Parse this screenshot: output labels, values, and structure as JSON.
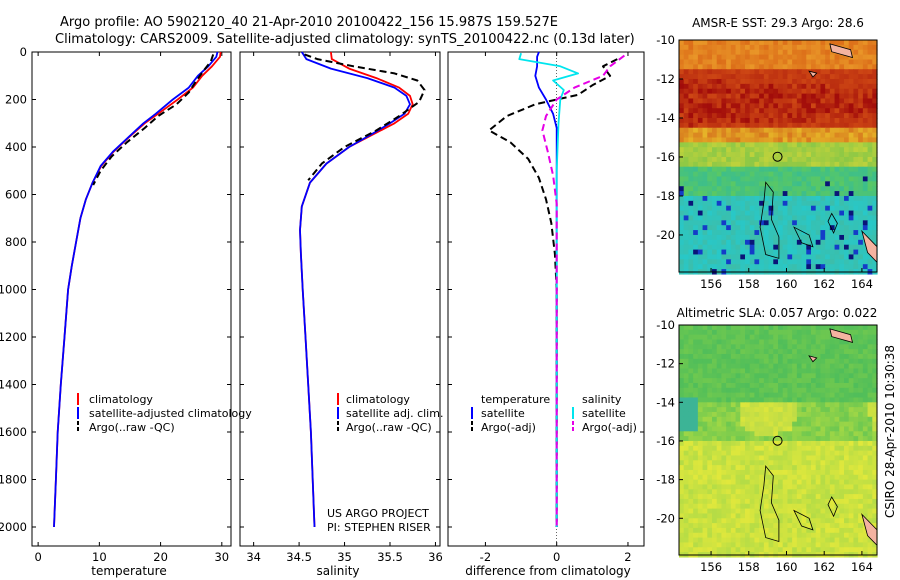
{
  "header": {
    "line1": "Argo profile: AO 5902120_40 21-Apr-2010 20100422_156 15.987S 159.527E",
    "line2": "Climatology: CARS2009. Satellite-adjusted climatology: synTS_20100422.nc (0.13d later)"
  },
  "credits": {
    "project": "US ARGO PROJECT",
    "pi": "PI: STEPHEN RISER",
    "stamp": "CSIRO 28-Apr-2010 10:30:38"
  },
  "colors": {
    "climatology": "#ff0000",
    "satellite": "#0000ff",
    "argo": "#000000",
    "satellite_salinity": "#00e5ee",
    "argo_salinity": "#e600e6",
    "land": "#f4b3a0"
  },
  "chart_data": [
    {
      "type": "line",
      "name": "temperature-profile",
      "xlabel": "temperature",
      "ylabel": "",
      "xlim": [
        -1,
        31.5
      ],
      "ylim": [
        2080,
        0
      ],
      "xticks": [
        0,
        10,
        20,
        30
      ],
      "yticks": [
        0,
        200,
        400,
        600,
        800,
        1000,
        1200,
        1400,
        1600,
        1800,
        2000
      ],
      "legend": [
        "climatology",
        "satellite-adjusted climatology",
        "Argo(..raw -QC)"
      ],
      "series": [
        {
          "name": "climatology",
          "style": "solid",
          "color": "#ff0000",
          "points": [
            [
              29.8,
              0
            ],
            [
              29.7,
              20
            ],
            [
              28.4,
              60
            ],
            [
              26.8,
              100
            ],
            [
              25.3,
              150
            ],
            [
              22.8,
              200
            ],
            [
              19.6,
              260
            ],
            [
              17.4,
              300
            ],
            [
              14.8,
              360
            ],
            [
              12.3,
              420
            ],
            [
              10.3,
              480
            ],
            [
              8.9,
              550
            ],
            [
              7.8,
              620
            ],
            [
              6.9,
              700
            ],
            [
              6.2,
              800
            ],
            [
              5.5,
              900
            ],
            [
              4.9,
              1000
            ],
            [
              4.3,
              1200
            ],
            [
              3.7,
              1400
            ],
            [
              3.2,
              1600
            ],
            [
              2.9,
              1800
            ],
            [
              2.6,
              2000
            ]
          ]
        },
        {
          "name": "satellite",
          "style": "solid",
          "color": "#0000ff",
          "points": [
            [
              29.3,
              0
            ],
            [
              29.1,
              20
            ],
            [
              27.8,
              60
            ],
            [
              26.1,
              100
            ],
            [
              24.6,
              150
            ],
            [
              22.0,
              200
            ],
            [
              19.2,
              260
            ],
            [
              17.2,
              300
            ],
            [
              14.7,
              360
            ],
            [
              12.2,
              420
            ],
            [
              10.2,
              480
            ],
            [
              8.9,
              550
            ],
            [
              7.8,
              620
            ],
            [
              6.9,
              700
            ],
            [
              6.2,
              800
            ],
            [
              5.5,
              900
            ],
            [
              4.9,
              1000
            ],
            [
              4.3,
              1200
            ],
            [
              3.7,
              1400
            ],
            [
              3.2,
              1600
            ],
            [
              2.9,
              1800
            ],
            [
              2.6,
              2000
            ]
          ]
        },
        {
          "name": "argo",
          "style": "dashed",
          "color": "#000000",
          "points": [
            [
              28.6,
              10
            ],
            [
              28.2,
              40
            ],
            [
              27.0,
              80
            ],
            [
              25.6,
              130
            ],
            [
              24.6,
              170
            ],
            [
              22.6,
              220
            ],
            [
              19.6,
              270
            ],
            [
              17.4,
              320
            ],
            [
              14.5,
              380
            ],
            [
              12.0,
              440
            ],
            [
              10.2,
              500
            ],
            [
              9.0,
              560
            ]
          ]
        }
      ]
    },
    {
      "type": "line",
      "name": "salinity-profile",
      "xlabel": "salinity",
      "ylabel": "",
      "xlim": [
        33.85,
        36.05
      ],
      "ylim": [
        2080,
        0
      ],
      "xticks": [
        34,
        34.5,
        35,
        35.5,
        36
      ],
      "legend": [
        "climatology",
        "satellite adj. clim.",
        "Argo(..raw -QC)"
      ],
      "series": [
        {
          "name": "climatology",
          "style": "solid",
          "color": "#ff0000",
          "points": [
            [
              34.85,
              0
            ],
            [
              34.86,
              30
            ],
            [
              35.05,
              70
            ],
            [
              35.35,
              110
            ],
            [
              35.6,
              150
            ],
            [
              35.72,
              185
            ],
            [
              35.75,
              220
            ],
            [
              35.7,
              260
            ],
            [
              35.55,
              300
            ],
            [
              35.3,
              350
            ],
            [
              35.05,
              400
            ],
            [
              34.8,
              470
            ],
            [
              34.62,
              550
            ],
            [
              34.53,
              650
            ],
            [
              34.51,
              750
            ],
            [
              34.52,
              850
            ],
            [
              34.54,
              1000
            ],
            [
              34.57,
              1200
            ],
            [
              34.6,
              1400
            ],
            [
              34.63,
              1600
            ],
            [
              34.65,
              1800
            ],
            [
              34.67,
              2000
            ]
          ]
        },
        {
          "name": "satellite",
          "style": "solid",
          "color": "#0000ff",
          "points": [
            [
              34.53,
              0
            ],
            [
              34.58,
              30
            ],
            [
              34.85,
              70
            ],
            [
              35.25,
              110
            ],
            [
              35.55,
              150
            ],
            [
              35.68,
              185
            ],
            [
              35.72,
              220
            ],
            [
              35.66,
              260
            ],
            [
              35.5,
              300
            ],
            [
              35.28,
              350
            ],
            [
              35.05,
              400
            ],
            [
              34.8,
              470
            ],
            [
              34.62,
              550
            ],
            [
              34.53,
              650
            ],
            [
              34.51,
              750
            ],
            [
              34.52,
              850
            ],
            [
              34.54,
              1000
            ],
            [
              34.57,
              1200
            ],
            [
              34.6,
              1400
            ],
            [
              34.63,
              1600
            ],
            [
              34.65,
              1800
            ],
            [
              34.67,
              2000
            ]
          ]
        },
        {
          "name": "argo",
          "style": "dashed",
          "color": "#000000",
          "points": [
            [
              34.56,
              10
            ],
            [
              34.7,
              30
            ],
            [
              35.1,
              60
            ],
            [
              35.55,
              90
            ],
            [
              35.8,
              120
            ],
            [
              35.88,
              160
            ],
            [
              35.82,
              210
            ],
            [
              35.6,
              270
            ],
            [
              35.35,
              330
            ],
            [
              35.0,
              400
            ],
            [
              34.75,
              470
            ],
            [
              34.6,
              540
            ]
          ]
        }
      ]
    },
    {
      "type": "line",
      "name": "difference-profile",
      "xlabel": "difference from climatology",
      "ylabel": "",
      "xlim": [
        -3.05,
        2.45
      ],
      "ylim": [
        2080,
        0
      ],
      "xticks": [
        -2,
        0,
        2
      ],
      "legend": [
        "temperature",
        "satellite",
        "Argo(-adj)",
        "salinity",
        "satellite",
        "Argo(-adj)"
      ],
      "series": [
        {
          "name": "temperature satellite",
          "style": "solid",
          "color": "#0000ff",
          "points": [
            [
              -0.5,
              0
            ],
            [
              -0.55,
              20
            ],
            [
              -0.55,
              60
            ],
            [
              -0.6,
              100
            ],
            [
              -0.5,
              150
            ],
            [
              -0.3,
              200
            ],
            [
              -0.1,
              260
            ],
            [
              0,
              320
            ],
            [
              0,
              2000
            ]
          ]
        },
        {
          "name": "temperature argo",
          "style": "dashed",
          "color": "#000000",
          "points": [
            [
              1.7,
              30
            ],
            [
              1.3,
              60
            ],
            [
              1.5,
              100
            ],
            [
              1.0,
              140
            ],
            [
              0.6,
              180
            ],
            [
              -0.6,
              220
            ],
            [
              -1.4,
              270
            ],
            [
              -1.9,
              330
            ],
            [
              -1.3,
              380
            ],
            [
              -0.8,
              450
            ],
            [
              -0.5,
              530
            ],
            [
              -0.3,
              620
            ],
            [
              -0.15,
              720
            ],
            [
              -0.05,
              850
            ],
            [
              0,
              1000
            ],
            [
              0,
              2000
            ]
          ]
        },
        {
          "name": "salinity satellite",
          "style": "solid",
          "color": "#00e5ee",
          "points": [
            [
              -1.0,
              5
            ],
            [
              -1.05,
              30
            ],
            [
              0.1,
              60
            ],
            [
              0.6,
              90
            ],
            [
              -0.1,
              120
            ],
            [
              0.2,
              160
            ],
            [
              0.1,
              200
            ],
            [
              0.05,
              300
            ],
            [
              0,
              500
            ],
            [
              0,
              2000
            ]
          ]
        },
        {
          "name": "salinity argo",
          "style": "dashed",
          "color": "#e600e6",
          "points": [
            [
              1.9,
              15
            ],
            [
              1.5,
              60
            ],
            [
              1.3,
              100
            ],
            [
              0.5,
              150
            ],
            [
              0,
              200
            ],
            [
              -0.3,
              270
            ],
            [
              -0.4,
              330
            ],
            [
              -0.25,
              420
            ],
            [
              -0.1,
              520
            ],
            [
              0,
              640
            ],
            [
              0,
              2000
            ]
          ]
        }
      ]
    },
    {
      "type": "heatmap",
      "name": "sst-map",
      "title": "AMSR-E SST: 29.3 Argo: 28.6",
      "xlim": [
        154.3,
        164.8
      ],
      "ylim": [
        -21.9,
        -10
      ],
      "xticks": [
        156,
        158,
        160,
        162,
        164
      ],
      "yticks": [
        -10,
        -12,
        -14,
        -16,
        -18,
        -20
      ],
      "argo_position": [
        159.527,
        -15.987
      ],
      "regions": [
        {
          "from_lat": -10,
          "to_lat": -11.5,
          "field": "warm orange"
        },
        {
          "from_lat": -11.5,
          "to_lat": -14.5,
          "field": "dark red band"
        },
        {
          "from_lat": -14.5,
          "to_lat": -16.5,
          "field": "yellow-green"
        },
        {
          "from_lat": -16.5,
          "to_lat": -18,
          "field": "green"
        },
        {
          "from_lat": -18,
          "to_lat": -21.9,
          "field": "cyan with blue patches"
        }
      ]
    },
    {
      "type": "heatmap",
      "name": "sla-map",
      "title": "Altimetric SLA: 0.057 Argo: 0.022",
      "xlim": [
        154.3,
        164.8
      ],
      "ylim": [
        -21.9,
        -10
      ],
      "xticks": [
        156,
        158,
        160,
        162,
        164
      ],
      "yticks": [
        -10,
        -12,
        -14,
        -16,
        -18,
        -20
      ],
      "argo_position": [
        159.527,
        -15.987
      ],
      "regions": [
        {
          "from_lat": -10,
          "to_lat": -14,
          "field": "green"
        },
        {
          "from_lat": -14,
          "to_lat": -16,
          "field": "green with yellow patches"
        },
        {
          "from_lat": -16,
          "to_lat": -21.9,
          "field": "yellow-green"
        }
      ]
    }
  ]
}
